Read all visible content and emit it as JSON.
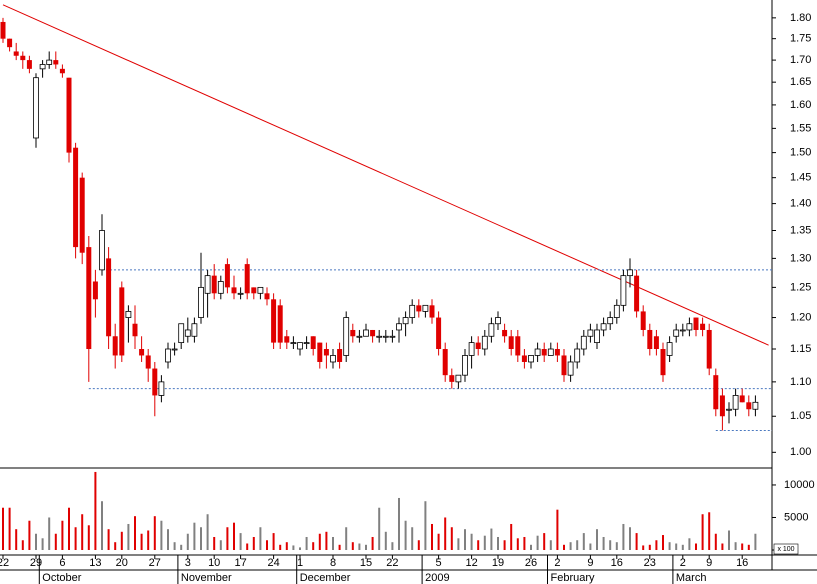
{
  "chart_data": [
    {
      "type": "candlestick",
      "log_scale": true,
      "up_color": "#ffffff",
      "down_color": "#e00000",
      "edge_color": "#000000",
      "ylim": [
        0.979,
        1.844
      ],
      "yticks": [
        {
          "value": 1.8,
          "label": "1.80"
        },
        1.75,
        {
          "value": 1.7,
          "label": "1.70"
        },
        1.65,
        {
          "value": 1.6,
          "label": "1.60"
        },
        1.55,
        {
          "value": 1.5,
          "label": "1.50"
        },
        1.45,
        {
          "value": 1.4,
          "label": "1.40"
        },
        1.35,
        {
          "value": 1.3,
          "label": "1.30"
        },
        1.25,
        {
          "value": 1.2,
          "label": "1.20"
        },
        1.15,
        {
          "value": 1.1,
          "label": "1.10"
        },
        1.05,
        {
          "value": 1.0,
          "label": "1.00"
        }
      ],
      "trendline": {
        "color": "#e00000",
        "x": [
          0,
          116
        ],
        "y": [
          1.832,
          1.156
        ]
      },
      "levels": {
        "color": "#4a78c0",
        "values": [
          1.28,
          1.09,
          1.03
        ],
        "from": [
          15,
          13,
          108
        ]
      },
      "candles": [
        [
          1.79,
          1.8,
          1.74,
          1.75
        ],
        [
          1.75,
          1.75,
          1.72,
          1.73
        ],
        [
          1.72,
          1.74,
          1.7,
          1.71
        ],
        [
          1.71,
          1.72,
          1.68,
          1.7
        ],
        [
          1.7,
          1.71,
          1.67,
          1.68
        ],
        [
          1.53,
          1.67,
          1.51,
          1.66
        ],
        [
          1.68,
          1.7,
          1.66,
          1.69
        ],
        [
          1.69,
          1.72,
          1.68,
          1.7
        ],
        [
          1.7,
          1.72,
          1.68,
          1.69
        ],
        [
          1.68,
          1.69,
          1.66,
          1.67
        ],
        [
          1.66,
          1.66,
          1.48,
          1.5
        ],
        [
          1.51,
          1.52,
          1.3,
          1.32
        ],
        [
          1.45,
          1.46,
          1.29,
          1.31
        ],
        [
          1.32,
          1.34,
          1.1,
          1.15
        ],
        [
          1.26,
          1.28,
          1.2,
          1.23
        ],
        [
          1.28,
          1.38,
          1.27,
          1.35
        ],
        [
          1.3,
          1.32,
          1.15,
          1.17
        ],
        [
          1.17,
          1.19,
          1.12,
          1.14
        ],
        [
          1.25,
          1.26,
          1.13,
          1.14
        ],
        [
          1.2,
          1.22,
          1.16,
          1.21
        ],
        [
          1.19,
          1.22,
          1.15,
          1.17
        ],
        [
          1.15,
          1.17,
          1.13,
          1.14
        ],
        [
          1.14,
          1.15,
          1.1,
          1.12
        ],
        [
          1.12,
          1.13,
          1.05,
          1.08
        ],
        [
          1.08,
          1.11,
          1.07,
          1.1
        ],
        [
          1.13,
          1.16,
          1.12,
          1.15
        ],
        [
          1.15,
          1.16,
          1.14,
          1.15
        ],
        [
          1.16,
          1.19,
          1.15,
          1.19
        ],
        [
          1.17,
          1.2,
          1.16,
          1.18
        ],
        [
          1.17,
          1.2,
          1.16,
          1.19
        ],
        [
          1.2,
          1.31,
          1.19,
          1.25
        ],
        [
          1.24,
          1.28,
          1.2,
          1.27
        ],
        [
          1.27,
          1.29,
          1.23,
          1.24
        ],
        [
          1.24,
          1.27,
          1.23,
          1.26
        ],
        [
          1.29,
          1.3,
          1.24,
          1.25
        ],
        [
          1.25,
          1.27,
          1.23,
          1.24
        ],
        [
          1.24,
          1.25,
          1.23,
          1.24
        ],
        [
          1.29,
          1.3,
          1.23,
          1.24
        ],
        [
          1.25,
          1.25,
          1.23,
          1.24
        ],
        [
          1.24,
          1.25,
          1.23,
          1.25
        ],
        [
          1.24,
          1.25,
          1.22,
          1.23
        ],
        [
          1.23,
          1.24,
          1.15,
          1.16
        ],
        [
          1.22,
          1.23,
          1.15,
          1.16
        ],
        [
          1.17,
          1.18,
          1.15,
          1.16
        ],
        [
          1.16,
          1.17,
          1.15,
          1.16
        ],
        [
          1.15,
          1.16,
          1.14,
          1.16
        ],
        [
          1.16,
          1.17,
          1.15,
          1.16
        ],
        [
          1.17,
          1.17,
          1.14,
          1.15
        ],
        [
          1.16,
          1.16,
          1.12,
          1.13
        ],
        [
          1.15,
          1.16,
          1.12,
          1.14
        ],
        [
          1.13,
          1.15,
          1.12,
          1.14
        ],
        [
          1.15,
          1.16,
          1.12,
          1.13
        ],
        [
          1.14,
          1.21,
          1.13,
          1.2
        ],
        [
          1.18,
          1.19,
          1.16,
          1.17
        ],
        [
          1.17,
          1.18,
          1.16,
          1.17
        ],
        [
          1.17,
          1.19,
          1.17,
          1.18
        ],
        [
          1.18,
          1.18,
          1.16,
          1.17
        ],
        [
          1.17,
          1.18,
          1.16,
          1.17
        ],
        [
          1.17,
          1.18,
          1.16,
          1.17
        ],
        [
          1.17,
          1.18,
          1.16,
          1.17
        ],
        [
          1.18,
          1.2,
          1.16,
          1.19
        ],
        [
          1.19,
          1.21,
          1.17,
          1.2
        ],
        [
          1.2,
          1.23,
          1.19,
          1.22
        ],
        [
          1.22,
          1.23,
          1.2,
          1.21
        ],
        [
          1.21,
          1.22,
          1.2,
          1.22
        ],
        [
          1.22,
          1.23,
          1.19,
          1.2
        ],
        [
          1.2,
          1.21,
          1.14,
          1.15
        ],
        [
          1.15,
          1.16,
          1.1,
          1.11
        ],
        [
          1.11,
          1.12,
          1.09,
          1.1
        ],
        [
          1.1,
          1.11,
          1.09,
          1.11
        ],
        [
          1.11,
          1.15,
          1.1,
          1.14
        ],
        [
          1.14,
          1.17,
          1.12,
          1.16
        ],
        [
          1.16,
          1.17,
          1.14,
          1.15
        ],
        [
          1.15,
          1.18,
          1.14,
          1.17
        ],
        [
          1.17,
          1.2,
          1.16,
          1.19
        ],
        [
          1.19,
          1.21,
          1.18,
          1.2
        ],
        [
          1.18,
          1.19,
          1.16,
          1.17
        ],
        [
          1.17,
          1.18,
          1.14,
          1.15
        ],
        [
          1.17,
          1.18,
          1.13,
          1.14
        ],
        [
          1.14,
          1.15,
          1.12,
          1.13
        ],
        [
          1.13,
          1.14,
          1.12,
          1.14
        ],
        [
          1.14,
          1.16,
          1.13,
          1.15
        ],
        [
          1.15,
          1.16,
          1.13,
          1.14
        ],
        [
          1.14,
          1.16,
          1.14,
          1.15
        ],
        [
          1.15,
          1.16,
          1.13,
          1.14
        ],
        [
          1.14,
          1.15,
          1.1,
          1.11
        ],
        [
          1.11,
          1.14,
          1.1,
          1.13
        ],
        [
          1.13,
          1.16,
          1.12,
          1.15
        ],
        [
          1.15,
          1.18,
          1.14,
          1.17
        ],
        [
          1.17,
          1.19,
          1.16,
          1.18
        ],
        [
          1.16,
          1.19,
          1.15,
          1.18
        ],
        [
          1.18,
          1.2,
          1.17,
          1.19
        ],
        [
          1.19,
          1.21,
          1.18,
          1.2
        ],
        [
          1.2,
          1.23,
          1.19,
          1.22
        ],
        [
          1.22,
          1.28,
          1.21,
          1.27
        ],
        [
          1.27,
          1.3,
          1.25,
          1.28
        ],
        [
          1.27,
          1.28,
          1.2,
          1.21
        ],
        [
          1.21,
          1.22,
          1.17,
          1.18
        ],
        [
          1.18,
          1.19,
          1.14,
          1.15
        ],
        [
          1.17,
          1.18,
          1.14,
          1.15
        ],
        [
          1.15,
          1.16,
          1.1,
          1.11
        ],
        [
          1.14,
          1.17,
          1.13,
          1.16
        ],
        [
          1.17,
          1.19,
          1.16,
          1.18
        ],
        [
          1.18,
          1.19,
          1.17,
          1.18
        ],
        [
          1.18,
          1.2,
          1.17,
          1.19
        ],
        [
          1.2,
          1.2,
          1.17,
          1.18
        ],
        [
          1.19,
          1.2,
          1.17,
          1.18
        ],
        [
          1.18,
          1.19,
          1.11,
          1.12
        ],
        [
          1.11,
          1.12,
          1.05,
          1.06
        ],
        [
          1.08,
          1.09,
          1.03,
          1.05
        ],
        [
          1.06,
          1.07,
          1.04,
          1.06
        ],
        [
          1.06,
          1.09,
          1.05,
          1.08
        ],
        [
          1.08,
          1.09,
          1.07,
          1.07
        ],
        [
          1.07,
          1.08,
          1.05,
          1.06
        ],
        [
          1.06,
          1.08,
          1.05,
          1.07
        ]
      ]
    },
    {
      "type": "bar",
      "up_color": "#808080",
      "down_color": "#e00000",
      "ylim": [
        0,
        12300
      ],
      "yticks": [
        0,
        5000,
        10000
      ],
      "unit_label": "x 100",
      "values": [
        6500,
        6500,
        3200,
        1500,
        4500,
        2500,
        1800,
        5000,
        2500,
        4500,
        6500,
        3500,
        5500,
        3800,
        12000,
        7500,
        3200,
        1200,
        2800,
        4000,
        5200,
        2500,
        3000,
        5200,
        4500,
        3200,
        1200,
        800,
        2500,
        4200,
        3500,
        5500,
        2000,
        1500,
        3500,
        4200,
        2600,
        1000,
        2000,
        3500,
        1500,
        2600,
        800,
        1200,
        700,
        400,
        2000,
        1200,
        2500,
        2800,
        2000,
        800,
        3500,
        1200,
        1000,
        800,
        2000,
        6500,
        2800,
        1200,
        8000,
        4500,
        3500,
        1500,
        7500,
        4000,
        2500,
        5000,
        3500,
        1800,
        3200,
        2500,
        1500,
        2200,
        3300,
        2000,
        1500,
        4000,
        1800,
        2000,
        800,
        2200,
        2600,
        1500,
        6200,
        800,
        1200,
        1500,
        2600,
        1000,
        3200,
        2000,
        1500,
        1200,
        4000,
        3500,
        2600,
        700,
        800,
        1500,
        2300,
        1200,
        1000,
        800,
        1800,
        1000,
        5500,
        5800,
        2500,
        1000,
        3000,
        1200,
        1000,
        800,
        2500
      ],
      "xticks": [
        {
          "value": 0,
          "label": "22"
        },
        {
          "value": 5,
          "label": "29"
        },
        {
          "value": 9,
          "label": "6"
        },
        {
          "value": 14,
          "label": "13"
        },
        {
          "value": 18,
          "label": "20"
        },
        {
          "value": 23,
          "label": "27"
        },
        {
          "value": 28,
          "label": "3"
        },
        {
          "value": 32,
          "label": "10"
        },
        {
          "value": 36,
          "label": "17"
        },
        {
          "value": 41,
          "label": "24"
        },
        {
          "value": 45,
          "label": "1"
        },
        {
          "value": 50,
          "label": "8"
        },
        {
          "value": 55,
          "label": "15"
        },
        {
          "value": 59,
          "label": "22"
        },
        {
          "value": 66,
          "label": "5"
        },
        {
          "value": 71,
          "label": "12"
        },
        {
          "value": 75,
          "label": "19"
        },
        {
          "value": 80,
          "label": "26"
        },
        {
          "value": 84,
          "label": "2"
        },
        {
          "value": 89,
          "label": "9"
        },
        {
          "value": 93,
          "label": "16"
        },
        {
          "value": 98,
          "label": "23"
        },
        {
          "value": 103,
          "label": "2"
        },
        {
          "value": 107,
          "label": "9"
        },
        {
          "value": 112,
          "label": "16"
        }
      ],
      "months": [
        {
          "value": 6,
          "label": "October"
        },
        {
          "value": 27,
          "label": "November"
        },
        {
          "value": 45,
          "label": "December"
        },
        {
          "value": 64,
          "label": "2009"
        },
        {
          "value": 83,
          "label": "February"
        },
        {
          "value": 102,
          "label": "March"
        }
      ]
    }
  ]
}
